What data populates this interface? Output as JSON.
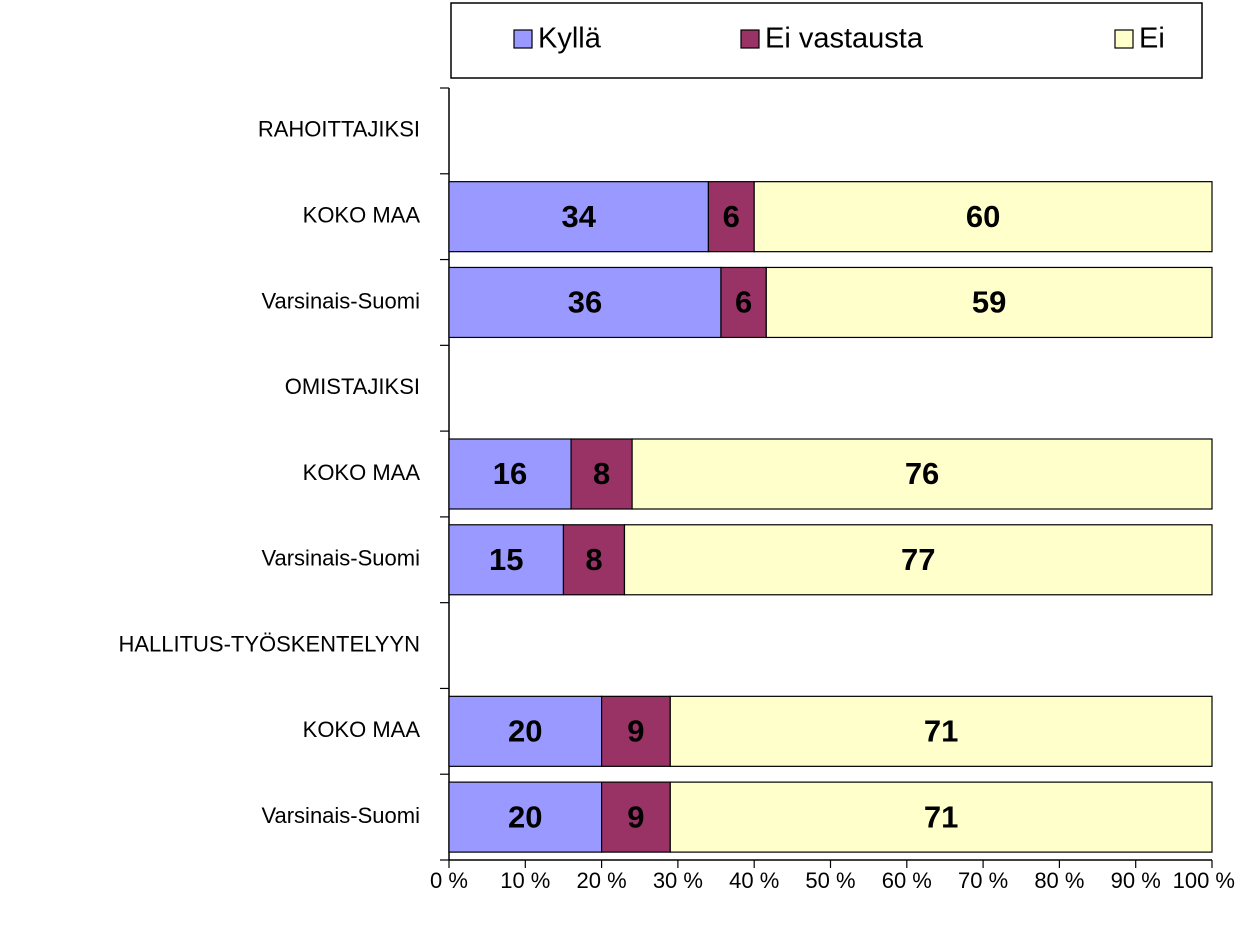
{
  "chart_data": {
    "type": "stacked-bar-horizontal",
    "stacking": "percent",
    "categories": [
      "RAHOITTAJIKSI",
      "KOKO MAA",
      "Varsinais-Suomi",
      "OMISTAJIKSI",
      "KOKO MAA",
      "Varsinais-Suomi",
      "HALLITUS-TYÖSKENTELYYN",
      "KOKO MAA",
      "Varsinais-Suomi"
    ],
    "series": [
      {
        "name": "Kyllä",
        "color": "#9999ff",
        "values": [
          null,
          34,
          36,
          null,
          16,
          15,
          null,
          20,
          20
        ]
      },
      {
        "name": "Ei vastausta",
        "color": "#993366",
        "values": [
          null,
          6,
          6,
          null,
          8,
          8,
          null,
          9,
          9
        ]
      },
      {
        "name": "Ei",
        "color": "#ffffcc",
        "values": [
          null,
          60,
          59,
          null,
          76,
          77,
          null,
          71,
          71
        ]
      }
    ],
    "xlim": [
      0,
      100
    ],
    "xticks": [
      {
        "value": 0,
        "label": "0 %"
      },
      {
        "value": 10,
        "label": "10 %"
      },
      {
        "value": 20,
        "label": "20 %"
      },
      {
        "value": 30,
        "label": "30 %"
      },
      {
        "value": 40,
        "label": "40 %"
      },
      {
        "value": 50,
        "label": "50 %"
      },
      {
        "value": 60,
        "label": "60 %"
      },
      {
        "value": 70,
        "label": "70 %"
      },
      {
        "value": 80,
        "label": "80 %"
      },
      {
        "value": 90,
        "label": "90 %"
      },
      {
        "value": 100,
        "label": "100 %"
      }
    ],
    "legend": "top"
  }
}
